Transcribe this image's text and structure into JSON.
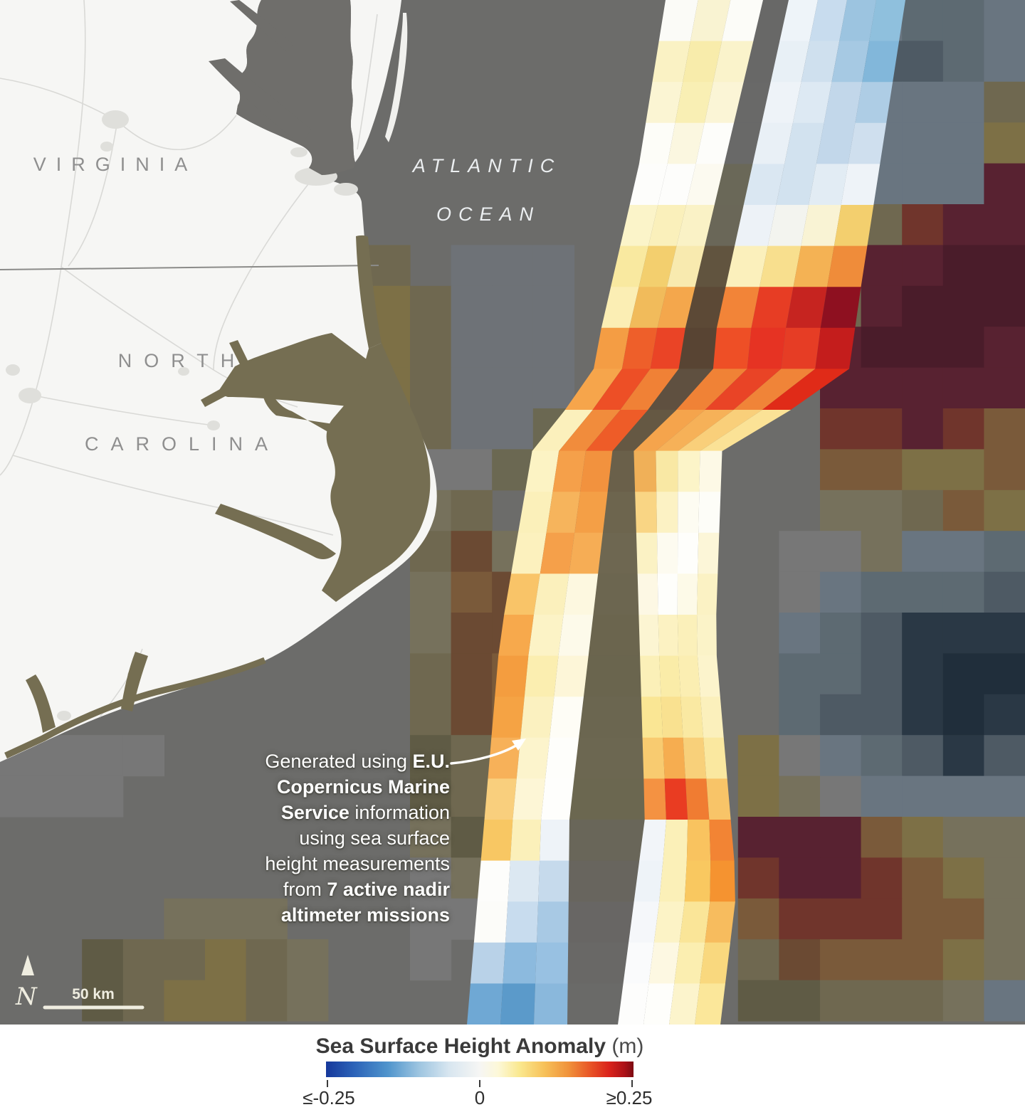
{
  "map": {
    "labels": {
      "state_top": "VIRGINIA",
      "state_bottom_line1": "NORTH",
      "state_bottom_line2": "CAROLINA",
      "ocean_line1": "ATLANTIC",
      "ocean_line2": "OCEAN"
    },
    "scale": {
      "label": "50 km",
      "north_letter": "N"
    },
    "colors": {
      "ocean": "#6c6c6a",
      "land": "#f6f6f4",
      "bay": "#6f6e6b",
      "sound": "#756e52",
      "road": "#d4d4d1",
      "city": "#dfdfdb",
      "border": "#8b8b89",
      "state_label": "#8f8f8f",
      "ocean_label": "#eceff1",
      "scalebar": "#efede0",
      "annotation_arrow": "#ffffff"
    }
  },
  "annotation": {
    "lines": [
      [
        {
          "t": "Generated using "
        },
        {
          "t": "E.U.",
          "b": true
        }
      ],
      [
        {
          "t": "Copernicus Marine",
          "b": true
        }
      ],
      [
        {
          "t": "Service",
          "b": true
        },
        {
          "t": " information"
        }
      ],
      [
        {
          "t": "using sea surface"
        }
      ],
      [
        {
          "t": "height measurements"
        }
      ],
      [
        {
          "t": "from "
        },
        {
          "t": "7 active nadir",
          "b": true
        }
      ],
      [
        {
          "t": "altimeter missions",
          "b": true
        }
      ]
    ]
  },
  "ocean_grid": {
    "tile_w": 57.6,
    "tile_h": 57.4,
    "palette": {
      "a": "#777777",
      "c": "#76715c",
      "d": "#5f5b45",
      "o": "#6f6850",
      "O": "#7d7046",
      "b": "#7a5a3a",
      "B": "#6b4a33",
      "r": "#70352c",
      "R": "#8a3b2a",
      "m": "#582231",
      "M": "#4a1c2a",
      "n": "#2a3845",
      "N": "#202e3b",
      "s": "#4e5a64",
      "t": "#5d6a72",
      "u": "#697580",
      "v": "#6e7277",
      "w": "#6b6852"
    },
    "rows": [
      "...................ttuttu",
      "...................sssstu",
      "....................uuuuo",
      "....................uuuuO",
      "....................uuuum",
      "....................oormm",
      "........oo.vvv......ommMM",
      "........oOovvv......omMMM",
      "........OOovvv......mMMMm",
      ".........Oovvv......mmmmm",
      ".........oovvww.....rrmrb",
      "..........aaw.......bbOOb",
      "..........co........ccobO",
      "..........oBc......aacuut",
      "..........cbB......auttts",
      "..........cBB......utsnnn",
      "..........oBb......ttsnNN",
      "..........oBb......tssnNn",
      "aaaa......doo.....Oautsns",
      "aaa.......doo.....Ocauuuu",
      "..........cdc.....mmmbOcc",
      "..........acc.....rmmrbOc",
      "....ccc...aa......brrrbbc",
      "..dooOoc..a.......oBbbbOc",
      "..doOOoc..........ddooocu"
    ]
  },
  "swaths": {
    "left": {
      "rows": [
        [
          "#fbfbf7",
          "#f9f3d2",
          "#fcfcf8"
        ],
        [
          "#faf2c4",
          "#f8ecab",
          "#faf3cb"
        ],
        [
          "#fbf5d3",
          "#f9efb4",
          "#fbf5d6"
        ],
        [
          "#fdfdf8",
          "#fbf7e0",
          "#fdfdfa"
        ],
        [
          "#fdfdfb",
          "#fdfdfb",
          "#fcfaf0"
        ],
        [
          "#fbf4c9",
          "#faf0bb",
          "#faf2c6"
        ],
        [
          "#f9e9a0",
          "#f3cf6e",
          "#f8eaaf"
        ],
        [
          "#fbeeb4",
          "#f1bb5b",
          "#f4a74c"
        ],
        [
          "#f49d44",
          "#ee5f2a",
          "#ea4426"
        ],
        [
          "#f6a54b",
          "#ed4f26",
          "#f08136"
        ],
        [
          "#fbf0bc",
          "#f18c3c",
          "#ee5c28"
        ],
        [
          "#fcf3c4",
          "#f5a04a",
          "#f2923e"
        ],
        [
          "#fbf0ba",
          "#f6b45c",
          "#f49f46"
        ],
        [
          "#fcf1be",
          "#f5a04a",
          "#f6ad55"
        ],
        [
          "#f9c468",
          "#fbf0bc",
          "#fdf8e0"
        ],
        [
          "#f7a94c",
          "#fcf3c6",
          "#fdfaea"
        ],
        [
          "#f49d3f",
          "#fbeeb0",
          "#fdf6d8"
        ],
        [
          "#f5a344",
          "#fbf1c0",
          "#fefdf6"
        ],
        [
          "#f7b159",
          "#fcf4cc",
          "#fefefb"
        ],
        [
          "#f9cf7d",
          "#fdf6d6",
          "#fefefc"
        ],
        [
          "#f8c763",
          "#fbf0ba",
          "#eef3f8"
        ],
        [
          "#fdfdfb",
          "#dce8f2",
          "#c6daec"
        ],
        [
          "#fcfcf9",
          "#c8dcee",
          "#a8c9e4"
        ],
        [
          "#b9d2e8",
          "#8cbade",
          "#98c1e2"
        ],
        [
          "#6fa8d4",
          "#5b9aca",
          "#8ab8dc"
        ]
      ]
    },
    "right": {
      "rows": [
        [
          "#eef4f9",
          "#c8dcee",
          "#9cc4e0",
          "#8fc0dd"
        ],
        [
          "#e8f0f6",
          "#cfe0ee",
          "#a6c9e3",
          "#82b7da"
        ],
        [
          "#eef3f8",
          "#dde9f3",
          "#c2d7ea",
          "#aecde5"
        ],
        [
          "#e9f0f6",
          "#d2e2ef",
          "#c2d7ea",
          "#cfdfee"
        ],
        [
          "#dae7f2",
          "#d2e2ef",
          "#e2ecf4",
          "#eef3f8"
        ],
        [
          "#edf2f7",
          "#f3f4ef",
          "#f9f3d4",
          "#f3cf6e"
        ],
        [
          "#fbf0bc",
          "#f8df8e",
          "#f4b254",
          "#ef8c3a"
        ],
        [
          "#f28438",
          "#e73d24",
          "#c62420",
          "#8e1020"
        ],
        [
          "#ee4f26",
          "#e63323",
          "#e63d25",
          "#c41d1c"
        ],
        [
          "#f08236",
          "#e94426",
          "#f08438",
          "#e02b18"
        ],
        [
          "#f5a44c",
          "#f6b158",
          "#f9cf7a",
          "#fbe296"
        ],
        [
          "#f0b058",
          "#f9e8a4",
          "#fcf4c8",
          "#fdf9e6"
        ],
        [
          "#f9d584",
          "#fcf2c4",
          "#fdfcf2",
          "#fdfdf8"
        ],
        [
          "#fbf2c4",
          "#fdfbf0",
          "#fefefb",
          "#fcf6d8"
        ],
        [
          "#fdf8e4",
          "#fefefb",
          "#fdfae8",
          "#fbf2c4"
        ],
        [
          "#fcf5d2",
          "#fcf2c2",
          "#fbf0ba",
          "#fbf3c8"
        ],
        [
          "#fbf0b8",
          "#faeca8",
          "#fbeeb2",
          "#fcf4cc"
        ],
        [
          "#fae694",
          "#f9e190",
          "#fae9a2",
          "#fbf0bc"
        ],
        [
          "#f8cb70",
          "#f6ad50",
          "#f8d07a",
          "#fae8a0"
        ],
        [
          "#f49242",
          "#e93c22",
          "#f07c32",
          "#f8c468"
        ],
        [
          "#f2f5f9",
          "#fbf0b8",
          "#f9c35f",
          "#f28434"
        ],
        [
          "#eef3f8",
          "#fbf0b8",
          "#f9c860",
          "#f59330"
        ],
        [
          "#f5f7fa",
          "#fcf3c6",
          "#fae598",
          "#f7bc5e"
        ],
        [
          "#fafbfc",
          "#fdf8e2",
          "#fbeeb0",
          "#f9d87e"
        ],
        [
          "#fdfdfc",
          "#fefefb",
          "#fcf4cc",
          "#fbe79a"
        ]
      ]
    },
    "gap": {
      "rows": [
        "#686867",
        "#686867",
        "#696968",
        "#696968",
        "#6a6858",
        "#6a6758",
        "#61543f",
        "#5c4936",
        "#584433",
        "#5f5040",
        "#655843",
        "#6a604a",
        "#6d654e",
        "#6e6751",
        "#6c6650",
        "#6b654e",
        "#6a654e",
        "#6b6650",
        "#6c6751",
        "#6b6750",
        "#696659",
        "#68655e",
        "#686664",
        "#696866",
        "#6a6a68"
      ]
    }
  },
  "legend": {
    "title": "Sea Surface Height Anomaly",
    "unit": "(m)",
    "tick_labels": [
      "≤-0.25",
      "0",
      "≥0.25"
    ],
    "gradient": [
      {
        "p": 0,
        "c": "#16389b"
      },
      {
        "p": 9,
        "c": "#2b62b8"
      },
      {
        "p": 20,
        "c": "#4f94cc"
      },
      {
        "p": 30,
        "c": "#9cc4e0"
      },
      {
        "p": 40,
        "c": "#d8e6f0"
      },
      {
        "p": 50,
        "c": "#f6f6f4"
      },
      {
        "p": 56,
        "c": "#fdf8d8"
      },
      {
        "p": 63,
        "c": "#fae88e"
      },
      {
        "p": 71,
        "c": "#f7c159"
      },
      {
        "p": 79,
        "c": "#f0913a"
      },
      {
        "p": 86,
        "c": "#e85426"
      },
      {
        "p": 92,
        "c": "#da231b"
      },
      {
        "p": 97,
        "c": "#ad1117"
      },
      {
        "p": 100,
        "c": "#7c0b12"
      }
    ]
  }
}
